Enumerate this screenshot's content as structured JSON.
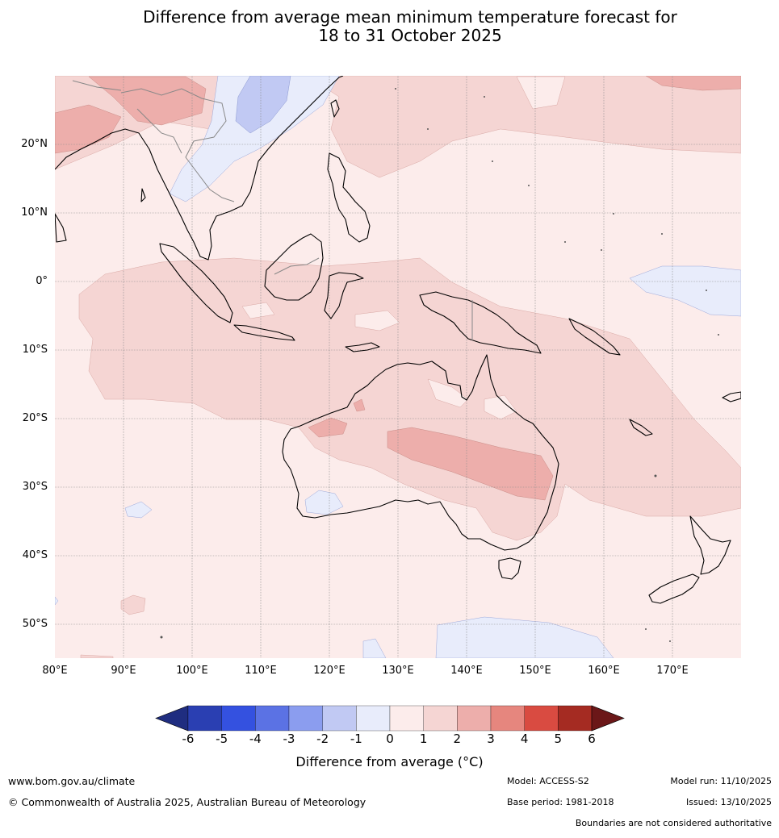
{
  "title": {
    "line1": "Difference from average mean minimum temperature forecast for",
    "line2": "18 to 31 October 2025"
  },
  "map": {
    "lon_range": [
      80,
      180
    ],
    "lat_range": [
      -55,
      30
    ],
    "lon_ticks": [
      "80°E",
      "90°E",
      "100°E",
      "110°E",
      "120°E",
      "130°E",
      "140°E",
      "150°E",
      "160°E",
      "170°E"
    ],
    "lat_ticks": [
      "20°N",
      "10°N",
      "0°",
      "10°S",
      "20°S",
      "30°S",
      "40°S",
      "50°S"
    ],
    "fill_colors": {
      "m1_0": "#e8ecfb",
      "m2_m1": "#c1c9f3",
      "0_1": "#fceceb",
      "1_2": "#f5d5d3",
      "2_3": "#edaeab"
    }
  },
  "colorbar": {
    "labels": [
      "-6",
      "-5",
      "-4",
      "-3",
      "-2",
      "-1",
      "0",
      "1",
      "2",
      "3",
      "4",
      "5",
      "6"
    ],
    "colors": [
      "#1f2d80",
      "#2a3fb2",
      "#3451e0",
      "#5b72e4",
      "#8b9def",
      "#c1c9f3",
      "#e8ecfb",
      "#fceceb",
      "#f5d5d3",
      "#edaeab",
      "#e6867e",
      "#d94b41",
      "#a52b22",
      "#6b1718"
    ],
    "title": "Difference from average (°C)"
  },
  "footer": {
    "website": "www.bom.gov.au/climate",
    "copyright": "© Commonwealth of Australia 2025, Australian Bureau of Meteorology",
    "model": "Model: ACCESS-S2",
    "base_period": "Base period: 1981-2018",
    "model_run": "Model run: 11/10/2025",
    "issued": "Issued: 13/10/2025",
    "disclaimer": "Boundaries are not considered authoritative"
  }
}
